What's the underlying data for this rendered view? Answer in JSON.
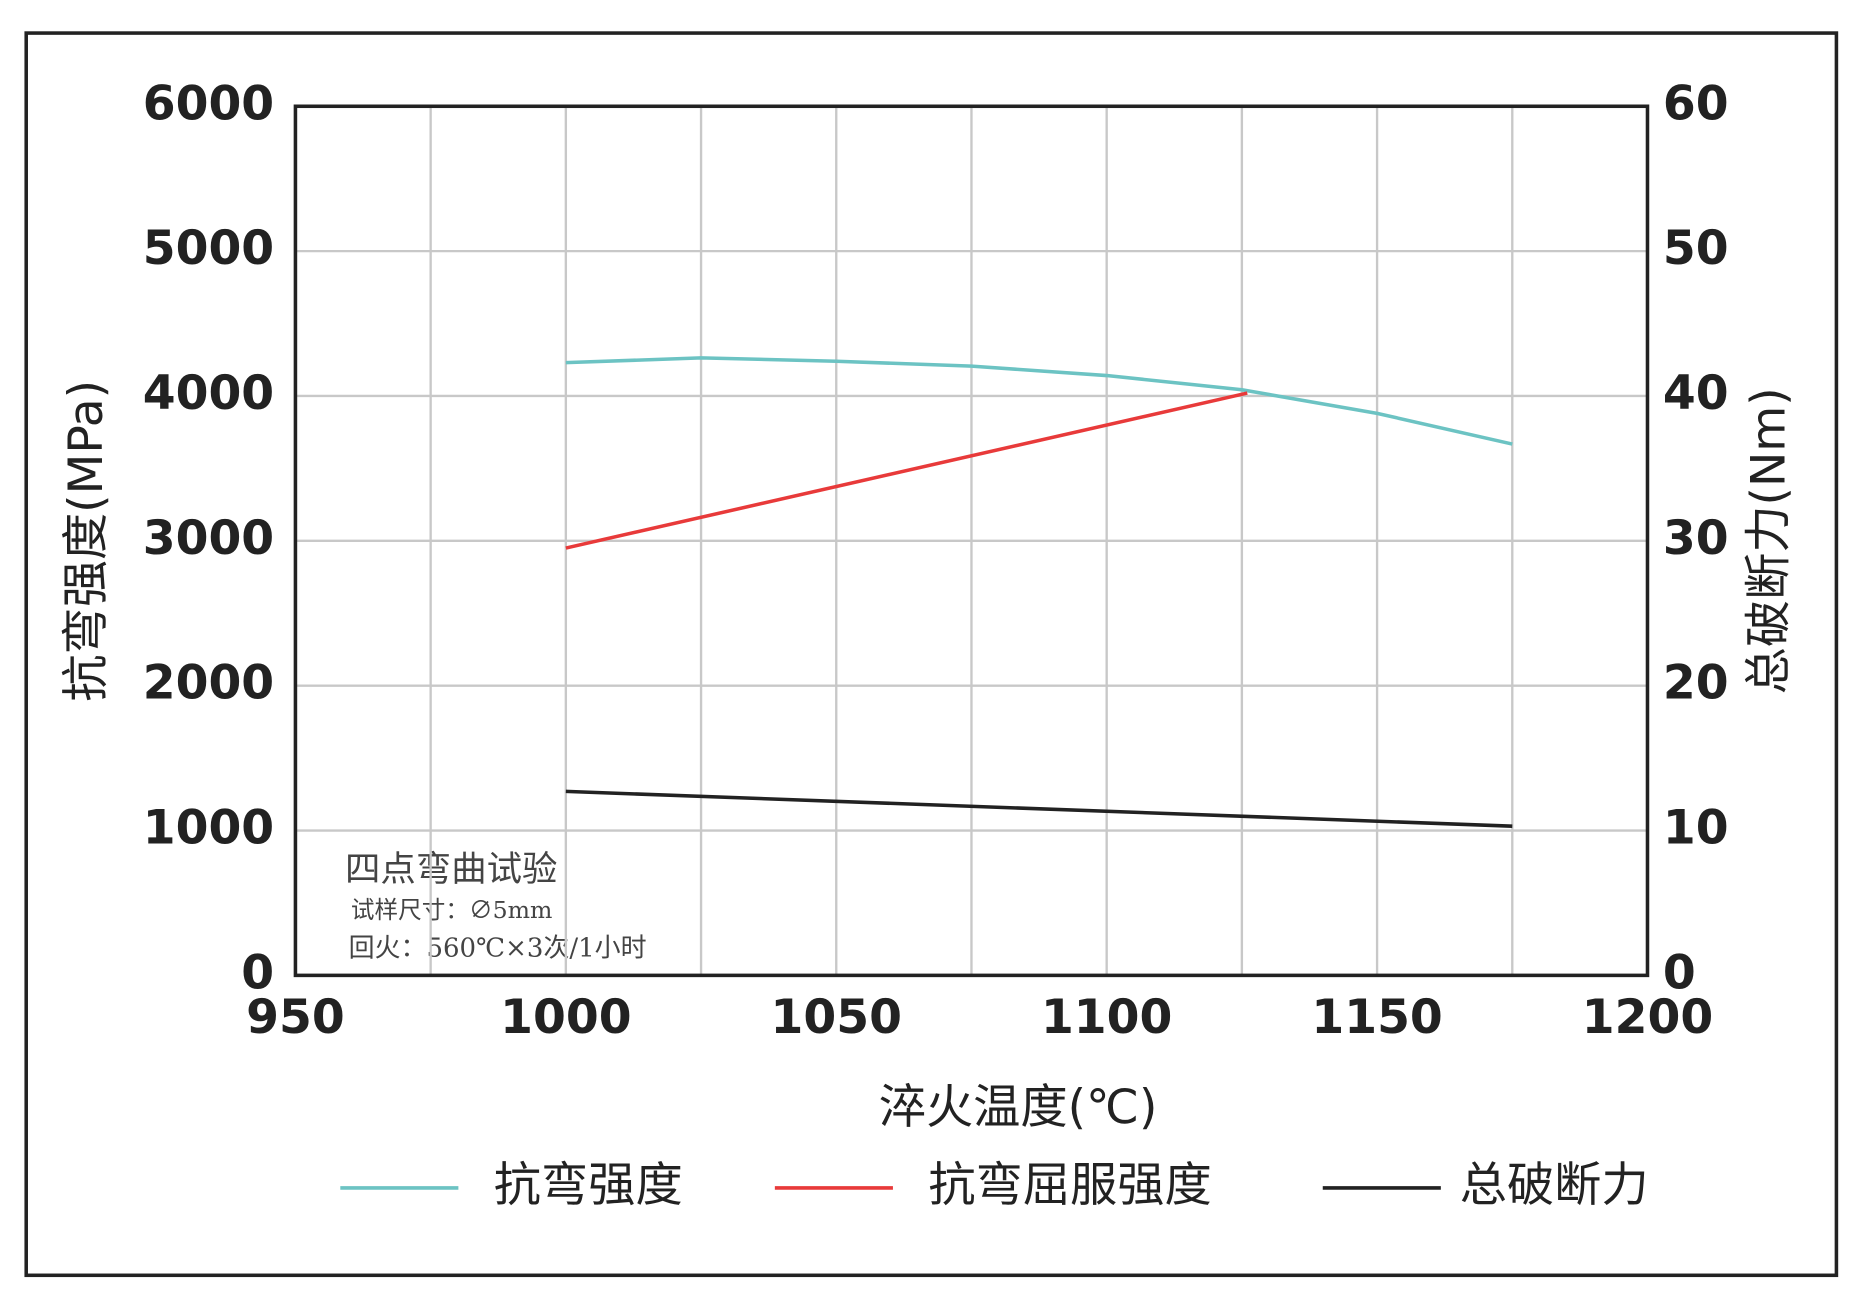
{
  "chart_data": {
    "type": "line",
    "x_label": "淬火温度(℃)",
    "y_label": "抗弯强度(MPa)",
    "y2_label": "总破断力(Nm)",
    "annotations": [
      "四点弯曲试验",
      "试样尺寸：∅5mm",
      "回火：560℃×3次/1小时"
    ],
    "xlim": [
      950,
      1200
    ],
    "xticks": [
      950,
      1000,
      1050,
      1100,
      1150,
      1200
    ],
    "x_minor_grid": [
      975,
      1025,
      1075,
      1125,
      1175
    ],
    "ylim": [
      0,
      6000
    ],
    "yticks": [
      0,
      1000,
      2000,
      3000,
      4000,
      5000,
      6000
    ],
    "y2lim": [
      0,
      60
    ],
    "y2ticks": [
      0,
      10,
      20,
      30,
      40,
      50,
      60
    ],
    "grid": true,
    "legend": "bottom",
    "series": [
      {
        "name": "抗弯强度",
        "color": "#6cc3c3",
        "x": [
          1000,
          1025,
          1050,
          1075,
          1100,
          1125,
          1150,
          1175
        ],
        "values": [
          4230,
          4263,
          4240,
          4206,
          4141,
          4043,
          3880,
          3668
        ]
      },
      {
        "name": "抗弯屈服强度",
        "color": "#e83a3a",
        "x": [
          1000,
          1126
        ],
        "values": [
          2950,
          4020
        ]
      },
      {
        "name": "总破断力",
        "color": "#222222",
        "axis": "y2",
        "x": [
          1000,
          1175
        ],
        "values": [
          12.7,
          10.3
        ]
      }
    ]
  }
}
